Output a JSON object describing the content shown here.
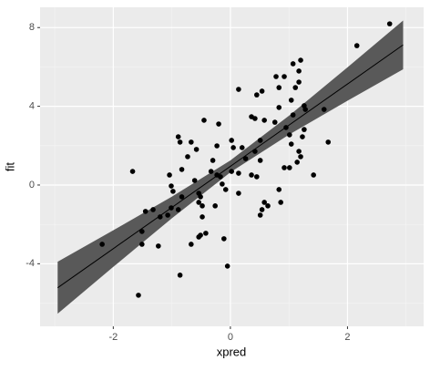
{
  "chart_data": {
    "type": "scatter",
    "xlabel": "xpred",
    "ylabel": "fit",
    "xlim": [
      -3.25,
      3.3
    ],
    "ylim": [
      -7.18,
      9.03
    ],
    "xticks": [
      -2,
      0,
      2
    ],
    "yticks": [
      -4,
      0,
      4,
      8
    ],
    "xminor": [
      -3,
      -1,
      1,
      3
    ],
    "yminor": [
      -6,
      -2,
      2,
      6
    ],
    "grid": true,
    "background": "#ebebeb",
    "points": {
      "color": "#000000",
      "x": [
        2.72,
        2.16,
        1.2,
        1.07,
        1.17,
        0.78,
        0.92,
        1.17,
        1.11,
        0.83,
        0.14,
        0.54,
        0.45,
        1.04,
        1.26,
        0.83,
        1.28,
        1.6,
        1.07,
        0.36,
        0.42,
        0.58,
        -0.45,
        0.76,
        -0.2,
        0.95,
        1.26,
        1.01,
        -0.89,
        -0.86,
        1.67,
        0.51,
        -0.67,
        1.23,
        0.02,
        1.04,
        0.05,
        0.2,
        -0.58,
        -0.23,
        0.42,
        1.17,
        -0.73,
        1.2,
        -0.3,
        0.51,
        0.26,
        1.14,
        1.01,
        0.92,
        -1.67,
        -0.83,
        -0.33,
        0.02,
        -1.04,
        0.14,
        0.36,
        0.45,
        -0.23,
        -0.17,
        1.42,
        -0.61,
        -1.01,
        -0.14,
        -0.08,
        -0.98,
        -0.54,
        -0.51,
        0.14,
        0.83,
        -0.83,
        -0.54,
        0.86,
        -0.48,
        0.58,
        0.64,
        -1.01,
        0.54,
        -0.89,
        -0.26,
        0.51,
        -1.45,
        -1.32,
        -1.2,
        -1.07,
        -0.48,
        -1.51,
        -0.42,
        -0.54,
        -0.11,
        -0.51,
        -0.67,
        -1.23,
        -1.51,
        -2.19,
        -0.05,
        -0.86,
        -1.57
      ],
      "y": [
        8.19,
        7.08,
        6.34,
        6.16,
        5.79,
        5.51,
        5.51,
        5.23,
        4.95,
        4.95,
        4.86,
        4.77,
        4.58,
        4.31,
        4.03,
        3.94,
        3.84,
        3.84,
        3.56,
        3.47,
        3.38,
        3.29,
        3.29,
        3.19,
        3.1,
        2.92,
        2.82,
        2.55,
        2.45,
        2.18,
        2.18,
        2.27,
        2.18,
        2.45,
        2.27,
        2.08,
        1.9,
        1.9,
        1.81,
        1.99,
        1.71,
        1.71,
        1.44,
        1.44,
        1.25,
        1.25,
        1.34,
        1.16,
        0.88,
        0.88,
        0.69,
        0.79,
        0.69,
        0.69,
        0.51,
        0.6,
        0.51,
        0.42,
        0.51,
        0.42,
        0.51,
        0.23,
        -0.05,
        0.05,
        -0.23,
        -0.32,
        -0.42,
        -0.6,
        -0.42,
        -0.23,
        -0.6,
        -0.88,
        -0.88,
        -1.06,
        -0.88,
        -1.06,
        -1.16,
        -1.25,
        -1.25,
        -1.06,
        -1.53,
        -1.34,
        -1.25,
        -1.62,
        -1.53,
        -1.62,
        -2.36,
        -2.45,
        -2.64,
        -2.73,
        -2.55,
        -3.01,
        -3.1,
        -3.01,
        -3.01,
        -4.12,
        -4.58,
        -5.6
      ]
    },
    "fit": {
      "color": "#000000",
      "x": [
        -2.95,
        2.95
      ],
      "y": [
        -5.22,
        7.12
      ]
    },
    "band": {
      "color": "#595959",
      "x": [
        -2.95,
        -2,
        -1,
        0,
        1,
        2,
        2.95
      ],
      "lower": [
        -6.54,
        -4.16,
        -1.69,
        0.65,
        2.56,
        4.28,
        5.88
      ],
      "upper": [
        -3.9,
        -2.3,
        -0.59,
        1.25,
        3.52,
        5.98,
        8.36
      ]
    }
  }
}
